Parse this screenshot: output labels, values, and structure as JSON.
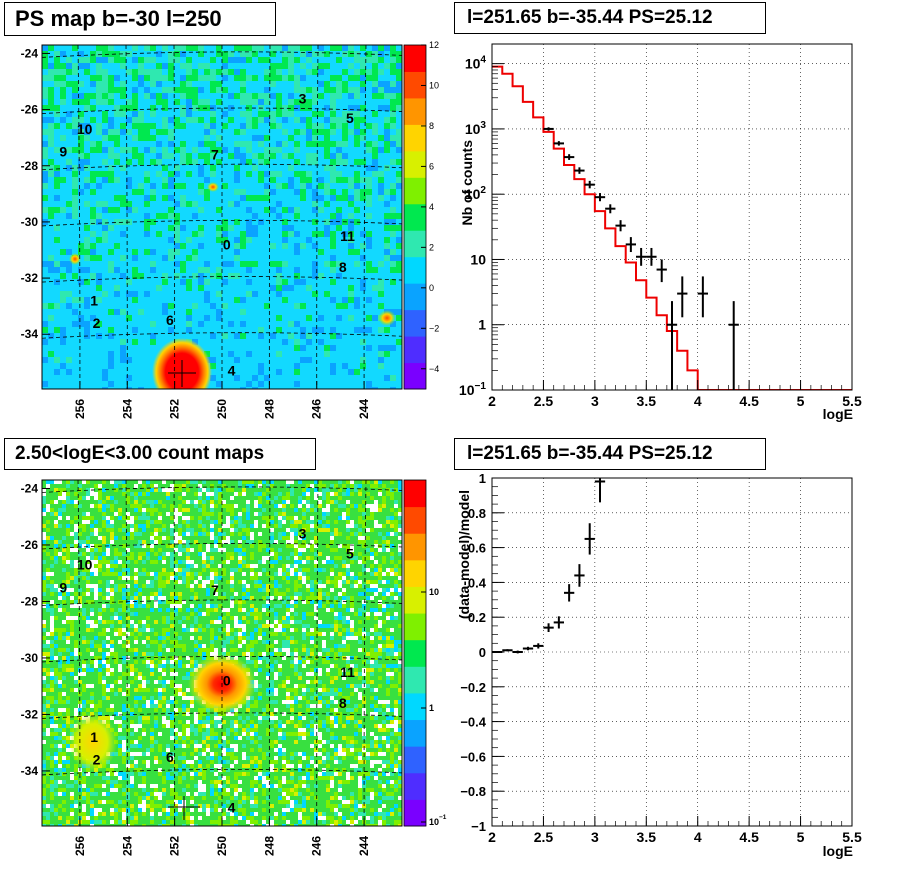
{
  "titles": {
    "map_top": "PS map b=-30 l=250",
    "spec_top": "l=251.65 b=-35.44 PS=25.12",
    "map_bottom": "2.50<logE<3.00 count maps",
    "spec_bottom": "l=251.65 b=-35.44 PS=25.12"
  },
  "chart_data": [
    {
      "type": "heatmap",
      "title": "PS map b=-30 l=250",
      "x_ticks": [
        "256",
        "254",
        "252",
        "250",
        "248",
        "246",
        "244"
      ],
      "y_ticks": [
        "-24",
        "-26",
        "-28",
        "-30",
        "-32",
        "-34"
      ],
      "colorbar": {
        "ticks": [
          "12",
          "10",
          "8",
          "6",
          "4",
          "2",
          "0",
          "−2",
          "−4"
        ],
        "range": [
          -5,
          12
        ],
        "colors": [
          "#7a00ff",
          "#4f2dff",
          "#2f62ff",
          "#0aa3ff",
          "#00d8ff",
          "#2fe8b0",
          "#00e84f",
          "#7ff000",
          "#d8f000",
          "#ffd400",
          "#ff9500",
          "#ff4a00",
          "#ff0000"
        ]
      },
      "point_sources": [
        {
          "label": "0",
          "l": 249.8,
          "b": -30.8
        },
        {
          "label": "1",
          "l": 255.4,
          "b": -32.8
        },
        {
          "label": "2",
          "l": 255.3,
          "b": -33.6
        },
        {
          "label": "3",
          "l": 246.6,
          "b": -25.6
        },
        {
          "label": "4",
          "l": 249.6,
          "b": -35.3
        },
        {
          "label": "5",
          "l": 244.6,
          "b": -26.3
        },
        {
          "label": "6",
          "l": 252.2,
          "b": -33.5
        },
        {
          "label": "7",
          "l": 250.3,
          "b": -27.6
        },
        {
          "label": "8",
          "l": 244.9,
          "b": -31.6
        },
        {
          "label": "9",
          "l": 256.7,
          "b": -27.5
        },
        {
          "label": "10",
          "l": 255.8,
          "b": -26.7
        },
        {
          "label": "11",
          "l": 244.7,
          "b": -30.5
        }
      ],
      "target_cross": {
        "l": 251.65,
        "b": -35.44
      }
    },
    {
      "type": "line",
      "title": "l=251.65 b=-35.44 PS=25.12",
      "xlabel": "logE",
      "ylabel": "Nb of counts",
      "xlim": [
        2,
        5.5
      ],
      "ylim": [
        0.1,
        20000
      ],
      "y_scale": "log",
      "x_ticks": [
        "2",
        "2.5",
        "3",
        "3.5",
        "4",
        "4.5",
        "5",
        "5.5"
      ],
      "y_ticks": [
        {
          "base": "10",
          "exp": "4"
        },
        {
          "base": "10",
          "exp": "3"
        },
        {
          "base": "10",
          "exp": "2"
        },
        {
          "base": "10",
          "exp": ""
        },
        {
          "base": "1",
          "exp": ""
        },
        {
          "base": "10",
          "exp": "−1"
        }
      ],
      "model_step": {
        "color": "#ee0000",
        "x": [
          2.0,
          2.1,
          2.2,
          2.3,
          2.4,
          2.5,
          2.6,
          2.7,
          2.8,
          2.9,
          3.0,
          3.1,
          3.2,
          3.3,
          3.4,
          3.5,
          3.6,
          3.7,
          3.8,
          3.9,
          4.0,
          4.1,
          4.2,
          4.3,
          4.4,
          4.5,
          4.6,
          4.7,
          4.8,
          4.9,
          5.0,
          5.1,
          5.2,
          5.3,
          5.4
        ],
        "y": [
          9000,
          7000,
          4500,
          2600,
          1500,
          900,
          500,
          280,
          170,
          100,
          55,
          30,
          16,
          9,
          4.8,
          2.6,
          1.4,
          0.8,
          0.4,
          0.2,
          0.1,
          0.1,
          0.1,
          0.1,
          0.1,
          0.1,
          0.1,
          0.1,
          0.1,
          0.1,
          0.1,
          0.1,
          0.1,
          0.1,
          0.1
        ]
      },
      "data_points": [
        {
          "x": 2.55,
          "y": 1000,
          "lo": 940,
          "hi": 1060
        },
        {
          "x": 2.65,
          "y": 600,
          "lo": 555,
          "hi": 650
        },
        {
          "x": 2.75,
          "y": 370,
          "lo": 335,
          "hi": 410
        },
        {
          "x": 2.85,
          "y": 230,
          "lo": 205,
          "hi": 258
        },
        {
          "x": 2.95,
          "y": 140,
          "lo": 123,
          "hi": 160
        },
        {
          "x": 3.05,
          "y": 90,
          "lo": 78,
          "hi": 104
        },
        {
          "x": 3.15,
          "y": 60,
          "lo": 51,
          "hi": 70
        },
        {
          "x": 3.25,
          "y": 33,
          "lo": 27,
          "hi": 40
        },
        {
          "x": 3.35,
          "y": 17,
          "lo": 13,
          "hi": 22
        },
        {
          "x": 3.45,
          "y": 11,
          "lo": 8,
          "hi": 15
        },
        {
          "x": 3.55,
          "y": 11,
          "lo": 8,
          "hi": 15
        },
        {
          "x": 3.65,
          "y": 7,
          "lo": 4.5,
          "hi": 10
        },
        {
          "x": 3.75,
          "y": 1,
          "lo": 0.1,
          "hi": 2.3
        },
        {
          "x": 3.85,
          "y": 3,
          "lo": 1.3,
          "hi": 5.5
        },
        {
          "x": 4.05,
          "y": 3,
          "lo": 1.3,
          "hi": 5.5
        },
        {
          "x": 4.35,
          "y": 1,
          "lo": 0.1,
          "hi": 2.3
        }
      ]
    },
    {
      "type": "heatmap",
      "title": "2.50<logE<3.00 count maps",
      "x_ticks": [
        "256",
        "254",
        "252",
        "250",
        "248",
        "246",
        "244"
      ],
      "y_ticks": [
        "-24",
        "-26",
        "-28",
        "-30",
        "-32",
        "-34"
      ],
      "colorbar": {
        "ticks": [
          {
            "base": "10",
            "exp": ""
          },
          {
            "base": "1",
            "exp": ""
          },
          {
            "base": "10",
            "exp": "−1"
          }
        ],
        "scale": "log",
        "colors": [
          "#7a00ff",
          "#4f2dff",
          "#2f62ff",
          "#0aa3ff",
          "#00d8ff",
          "#2fe8b0",
          "#00e84f",
          "#7ff000",
          "#d8f000",
          "#ffd400",
          "#ff9500",
          "#ff4a00",
          "#ff0000"
        ]
      },
      "point_sources": [
        {
          "label": "0",
          "l": 249.8,
          "b": -30.8
        },
        {
          "label": "1",
          "l": 255.4,
          "b": -32.8
        },
        {
          "label": "2",
          "l": 255.3,
          "b": -33.6
        },
        {
          "label": "3",
          "l": 246.6,
          "b": -25.6
        },
        {
          "label": "4",
          "l": 249.6,
          "b": -35.3
        },
        {
          "label": "5",
          "l": 244.6,
          "b": -26.3
        },
        {
          "label": "6",
          "l": 252.2,
          "b": -33.5
        },
        {
          "label": "7",
          "l": 250.3,
          "b": -27.6
        },
        {
          "label": "8",
          "l": 244.9,
          "b": -31.6
        },
        {
          "label": "9",
          "l": 256.7,
          "b": -27.5
        },
        {
          "label": "10",
          "l": 255.8,
          "b": -26.7
        },
        {
          "label": "11",
          "l": 244.7,
          "b": -30.5
        }
      ],
      "target_cross": {
        "l": 251.65,
        "b": -35.44
      }
    },
    {
      "type": "scatter",
      "title": "l=251.65 b=-35.44 PS=25.12",
      "xlabel": "logE",
      "ylabel": "(data-model)/model",
      "xlim": [
        2,
        5.5
      ],
      "ylim": [
        -1,
        1
      ],
      "x_ticks": [
        "2",
        "2.5",
        "3",
        "3.5",
        "4",
        "4.5",
        "5",
        "5.5"
      ],
      "y_ticks": [
        "1",
        "0.8",
        "0.6",
        "0.4",
        "0.2",
        "0",
        "−0.2",
        "−0.4",
        "−0.6",
        "−0.8",
        "−1"
      ],
      "data_points": [
        {
          "x": 2.05,
          "y": 0.0,
          "e": 0.005
        },
        {
          "x": 2.15,
          "y": 0.01,
          "e": 0.006
        },
        {
          "x": 2.25,
          "y": 0.0,
          "e": 0.008
        },
        {
          "x": 2.35,
          "y": 0.02,
          "e": 0.01
        },
        {
          "x": 2.45,
          "y": 0.035,
          "e": 0.015
        },
        {
          "x": 2.55,
          "y": 0.14,
          "e": 0.025
        },
        {
          "x": 2.65,
          "y": 0.17,
          "e": 0.035
        },
        {
          "x": 2.75,
          "y": 0.34,
          "e": 0.05
        },
        {
          "x": 2.85,
          "y": 0.44,
          "e": 0.065
        },
        {
          "x": 2.95,
          "y": 0.65,
          "e": 0.09
        },
        {
          "x": 3.05,
          "y": 0.98,
          "e": 0.12
        }
      ]
    }
  ]
}
